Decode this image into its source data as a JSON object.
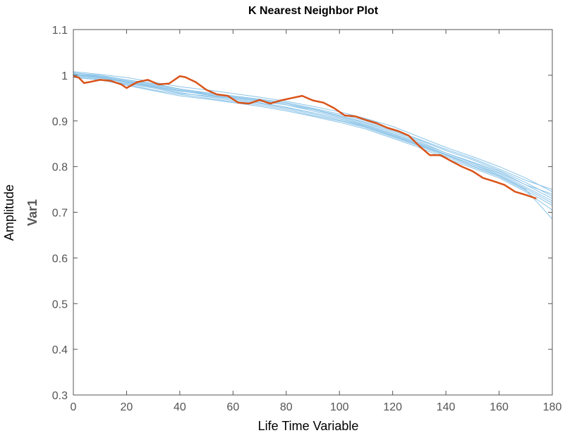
{
  "chart_data": {
    "type": "line",
    "title": "K Nearest Neighbor Plot",
    "xlabel": "Life Time Variable",
    "ylabel": "Amplitude",
    "inner_ylabel": "Var1",
    "xlim": [
      0,
      180
    ],
    "ylim": [
      0.3,
      1.1
    ],
    "xticks": [
      "0",
      "20",
      "40",
      "60",
      "80",
      "100",
      "120",
      "140",
      "160",
      "180"
    ],
    "yticks": [
      "0.3",
      "0.4",
      "0.5",
      "0.6",
      "0.7",
      "0.8",
      "0.9",
      "1",
      "1.1"
    ],
    "grid": false,
    "box": true,
    "colors": {
      "neighbors": "#8cc4e8",
      "test": "#d95319",
      "axis": "#555555"
    },
    "neighbors": [
      {
        "x": [
          0,
          10,
          20,
          30,
          40,
          50,
          60,
          70,
          80,
          90,
          100,
          110,
          120,
          130,
          140,
          150,
          160,
          170,
          180
        ],
        "y": [
          1.0,
          0.995,
          0.985,
          0.975,
          0.965,
          0.96,
          0.952,
          0.945,
          0.935,
          0.925,
          0.91,
          0.895,
          0.875,
          0.855,
          0.83,
          0.81,
          0.79,
          0.76,
          0.74
        ]
      },
      {
        "x": [
          0,
          10,
          20,
          30,
          40,
          50,
          60,
          70,
          80,
          90,
          100,
          110,
          120,
          130,
          140,
          150,
          160,
          170,
          180
        ],
        "y": [
          1.005,
          1.0,
          0.99,
          0.98,
          0.97,
          0.962,
          0.955,
          0.948,
          0.94,
          0.928,
          0.915,
          0.9,
          0.88,
          0.86,
          0.838,
          0.818,
          0.795,
          0.77,
          0.75
        ]
      },
      {
        "x": [
          0,
          10,
          20,
          30,
          40,
          50,
          60,
          70,
          80,
          90,
          100,
          110,
          120,
          130,
          140,
          150,
          160,
          170,
          180
        ],
        "y": [
          0.995,
          0.99,
          0.982,
          0.972,
          0.96,
          0.955,
          0.948,
          0.94,
          0.93,
          0.918,
          0.905,
          0.888,
          0.868,
          0.848,
          0.826,
          0.805,
          0.785,
          0.755,
          0.725
        ]
      },
      {
        "x": [
          0,
          10,
          20,
          30,
          40,
          50,
          60,
          70,
          80,
          90,
          100,
          110,
          120,
          130,
          140,
          150,
          160,
          170,
          180
        ],
        "y": [
          1.008,
          1.002,
          0.995,
          0.985,
          0.975,
          0.968,
          0.96,
          0.952,
          0.943,
          0.932,
          0.92,
          0.905,
          0.888,
          0.865,
          0.842,
          0.822,
          0.8,
          0.775,
          0.745
        ]
      },
      {
        "x": [
          0,
          10,
          20,
          30,
          40,
          50,
          60,
          70,
          80,
          90,
          100,
          110,
          120,
          130,
          140,
          150,
          160,
          170,
          180
        ],
        "y": [
          0.998,
          0.992,
          0.98,
          0.968,
          0.958,
          0.95,
          0.942,
          0.935,
          0.925,
          0.912,
          0.9,
          0.885,
          0.865,
          0.845,
          0.822,
          0.8,
          0.778,
          0.748,
          0.715
        ]
      },
      {
        "x": [
          0,
          10,
          20,
          30,
          40,
          50,
          60,
          70,
          80,
          90,
          100,
          110,
          120,
          130,
          140,
          150,
          160,
          170,
          180
        ],
        "y": [
          1.002,
          0.996,
          0.988,
          0.978,
          0.968,
          0.958,
          0.95,
          0.943,
          0.935,
          0.922,
          0.908,
          0.892,
          0.872,
          0.852,
          0.83,
          0.808,
          0.787,
          0.76,
          0.73
        ]
      },
      {
        "x": [
          0,
          10,
          20,
          30,
          40,
          50,
          60,
          70,
          80,
          90,
          100,
          110,
          120,
          130,
          140,
          150,
          160,
          170,
          180
        ],
        "y": [
          1.006,
          0.998,
          0.99,
          0.982,
          0.97,
          0.96,
          0.953,
          0.946,
          0.938,
          0.926,
          0.912,
          0.897,
          0.878,
          0.858,
          0.835,
          0.815,
          0.792,
          0.765,
          0.735
        ]
      },
      {
        "x": [
          0,
          10,
          20,
          30,
          40,
          50,
          60,
          70,
          80,
          90,
          100,
          110,
          120,
          130,
          140,
          150,
          160,
          170,
          180
        ],
        "y": [
          0.996,
          0.99,
          0.978,
          0.966,
          0.955,
          0.948,
          0.94,
          0.932,
          0.922,
          0.91,
          0.897,
          0.882,
          0.862,
          0.842,
          0.818,
          0.797,
          0.775,
          0.745,
          0.705
        ]
      },
      {
        "x": [
          0,
          10,
          20,
          30,
          40,
          50,
          60,
          70,
          80,
          90,
          100,
          110,
          120,
          130,
          140,
          150,
          160,
          170,
          180
        ],
        "y": [
          1.003,
          0.997,
          0.986,
          0.976,
          0.966,
          0.957,
          0.948,
          0.94,
          0.93,
          0.918,
          0.905,
          0.89,
          0.87,
          0.85,
          0.827,
          0.805,
          0.782,
          0.752,
          0.72
        ]
      },
      {
        "x": [
          0,
          10,
          20,
          30,
          40,
          50,
          60,
          70,
          80,
          90,
          100,
          110,
          120,
          130,
          140,
          150,
          160,
          170,
          180
        ],
        "y": [
          1.0,
          0.994,
          0.984,
          0.974,
          0.962,
          0.953,
          0.945,
          0.938,
          0.928,
          0.915,
          0.902,
          0.887,
          0.867,
          0.847,
          0.825,
          0.802,
          0.78,
          0.75,
          0.685
        ]
      }
    ],
    "test": {
      "x": [
        0,
        2,
        4,
        6,
        10,
        14,
        18,
        20,
        24,
        28,
        32,
        36,
        40,
        42,
        46,
        50,
        54,
        58,
        62,
        66,
        70,
        74,
        78,
        82,
        86,
        90,
        94,
        98,
        102,
        106,
        110,
        114,
        118,
        122,
        126,
        130,
        134,
        138,
        142,
        146,
        150,
        154,
        158,
        162,
        166,
        170,
        174
      ],
      "y": [
        0.998,
        0.995,
        0.983,
        0.985,
        0.99,
        0.988,
        0.98,
        0.972,
        0.985,
        0.99,
        0.98,
        0.982,
        0.998,
        0.996,
        0.985,
        0.968,
        0.958,
        0.955,
        0.94,
        0.938,
        0.946,
        0.938,
        0.945,
        0.95,
        0.955,
        0.945,
        0.94,
        0.928,
        0.912,
        0.91,
        0.902,
        0.895,
        0.885,
        0.878,
        0.868,
        0.845,
        0.825,
        0.825,
        0.812,
        0.8,
        0.79,
        0.775,
        0.768,
        0.76,
        0.745,
        0.738,
        0.73
      ]
    }
  }
}
